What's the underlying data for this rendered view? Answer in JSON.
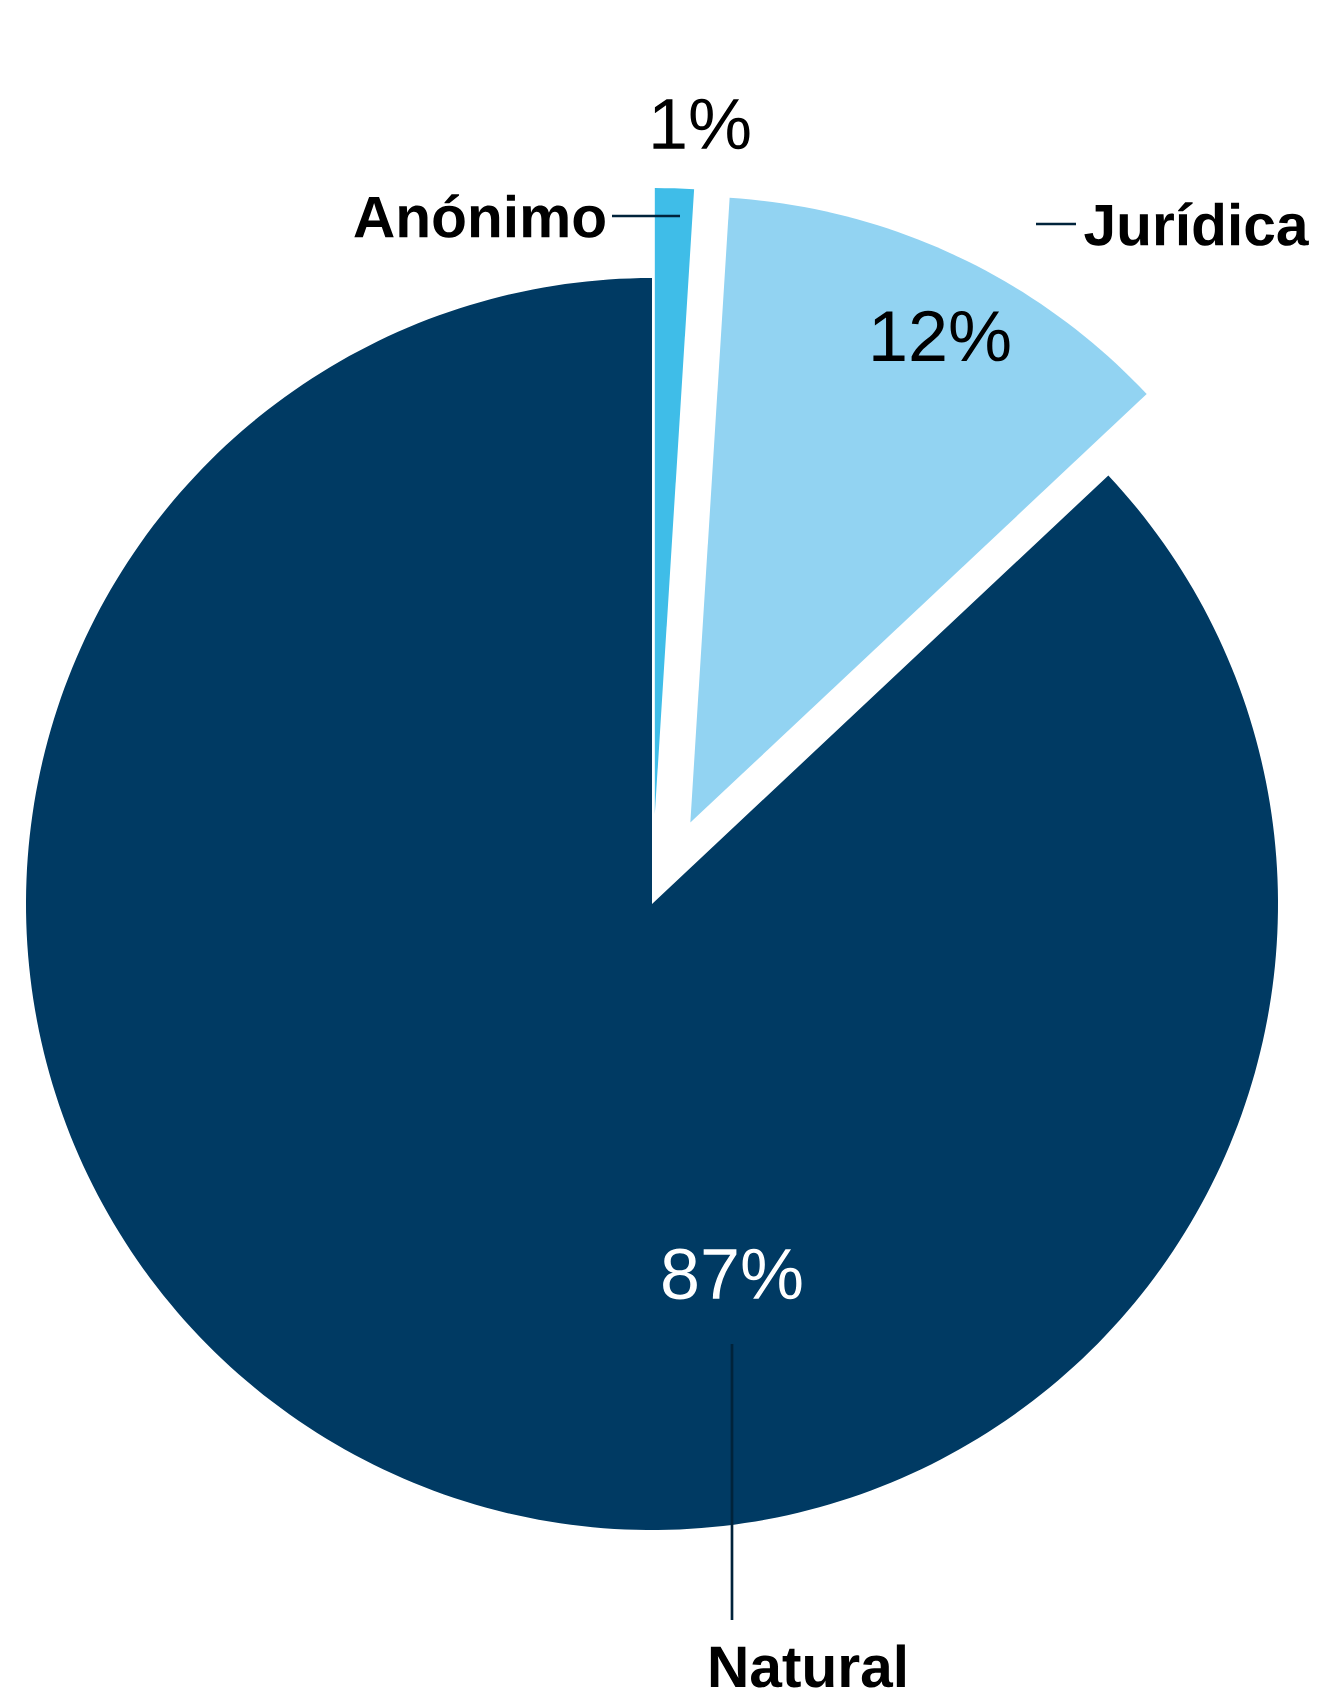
{
  "chart_data": {
    "type": "pie",
    "categories": [
      "Anónimo",
      "Jurídica",
      "Natural"
    ],
    "values": [
      1,
      12,
      87
    ],
    "colors": [
      "#3fbde8",
      "#92d3f2",
      "#003a63"
    ],
    "value_labels": [
      "1%",
      "12%",
      "87%"
    ]
  }
}
